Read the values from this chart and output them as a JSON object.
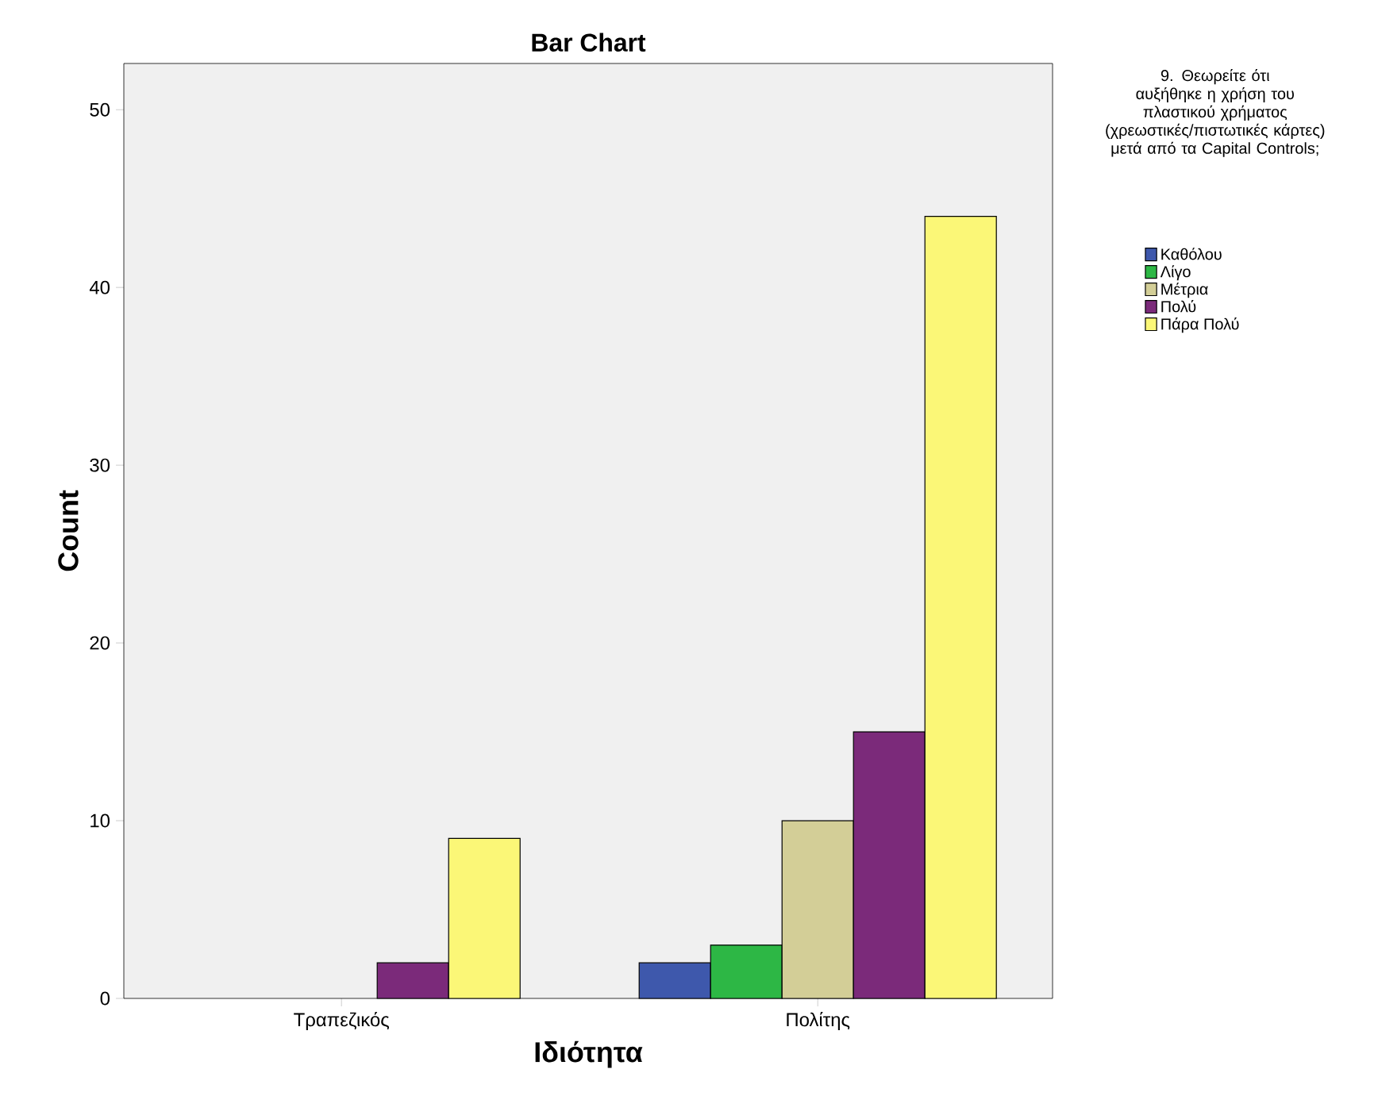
{
  "chart_data": {
    "type": "bar",
    "title": "Bar Chart",
    "xlabel": "Ιδιότητα",
    "ylabel": "Count",
    "legend_title": "9. Θεωρείτε ότι αυξήθηκε η χρήση του πλαστικού χρήματος (χρεωστικές/πιστωτικές κάρτες) μετά από τα Capital Controls;",
    "categories": [
      "Τραπεζικός",
      "Πολίτης"
    ],
    "series": [
      {
        "name": "Καθόλου",
        "color": "#3e58ac",
        "values": [
          null,
          2
        ]
      },
      {
        "name": "Λίγο",
        "color": "#2db745",
        "values": [
          null,
          3
        ]
      },
      {
        "name": "Μέτρια",
        "color": "#d3ce97",
        "values": [
          null,
          10
        ]
      },
      {
        "name": "Πολύ",
        "color": "#7b2a7a",
        "values": [
          2,
          15
        ]
      },
      {
        "name": "Πάρα Πολύ",
        "color": "#fbf777",
        "values": [
          9,
          44
        ]
      }
    ],
    "ylim": [
      0,
      52.6
    ],
    "yticks": [
      0,
      10,
      20,
      30,
      40,
      50
    ],
    "grid": false,
    "legend": "right"
  }
}
